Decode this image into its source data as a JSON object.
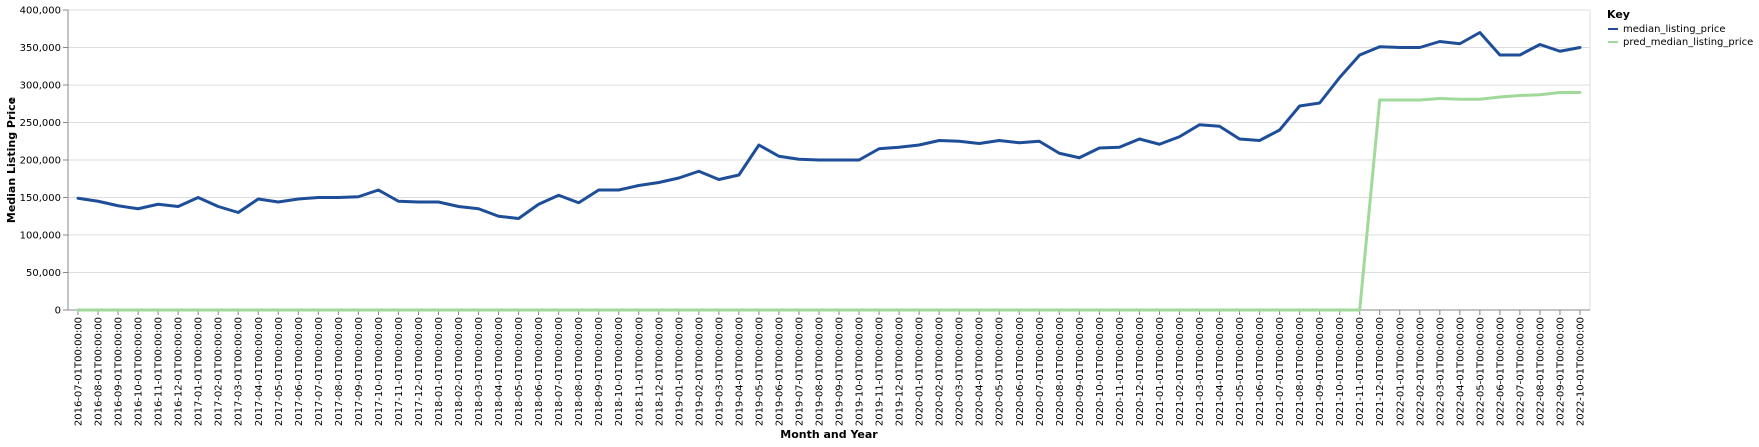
{
  "chart_data": {
    "type": "line",
    "xlabel": "Month and Year",
    "ylabel": "Median Listing Price",
    "ylim": [
      0,
      400000
    ],
    "y_ticks": [
      0,
      50000,
      100000,
      150000,
      200000,
      250000,
      300000,
      350000,
      400000
    ],
    "grid": true,
    "legend": {
      "title": "Key",
      "placement": "right"
    },
    "x": [
      "2016-07-01T00:00:00",
      "2016-08-01T00:00:00",
      "2016-09-01T00:00:00",
      "2016-10-01T00:00:00",
      "2016-11-01T00:00:00",
      "2016-12-01T00:00:00",
      "2017-01-01T00:00:00",
      "2017-02-01T00:00:00",
      "2017-03-01T00:00:00",
      "2017-04-01T00:00:00",
      "2017-05-01T00:00:00",
      "2017-06-01T00:00:00",
      "2017-07-01T00:00:00",
      "2017-08-01T00:00:00",
      "2017-09-01T00:00:00",
      "2017-10-01T00:00:00",
      "2017-11-01T00:00:00",
      "2017-12-01T00:00:00",
      "2018-01-01T00:00:00",
      "2018-02-01T00:00:00",
      "2018-03-01T00:00:00",
      "2018-04-01T00:00:00",
      "2018-05-01T00:00:00",
      "2018-06-01T00:00:00",
      "2018-07-01T00:00:00",
      "2018-08-01T00:00:00",
      "2018-09-01T00:00:00",
      "2018-10-01T00:00:00",
      "2018-11-01T00:00:00",
      "2018-12-01T00:00:00",
      "2019-01-01T00:00:00",
      "2019-02-01T00:00:00",
      "2019-03-01T00:00:00",
      "2019-04-01T00:00:00",
      "2019-05-01T00:00:00",
      "2019-06-01T00:00:00",
      "2019-07-01T00:00:00",
      "2019-08-01T00:00:00",
      "2019-09-01T00:00:00",
      "2019-10-01T00:00:00",
      "2019-11-01T00:00:00",
      "2019-12-01T00:00:00",
      "2020-01-01T00:00:00",
      "2020-02-01T00:00:00",
      "2020-03-01T00:00:00",
      "2020-04-01T00:00:00",
      "2020-05-01T00:00:00",
      "2020-06-01T00:00:00",
      "2020-07-01T00:00:00",
      "2020-08-01T00:00:00",
      "2020-09-01T00:00:00",
      "2020-10-01T00:00:00",
      "2020-11-01T00:00:00",
      "2020-12-01T00:00:00",
      "2021-01-01T00:00:00",
      "2021-02-01T00:00:00",
      "2021-03-01T00:00:00",
      "2021-04-01T00:00:00",
      "2021-05-01T00:00:00",
      "2021-06-01T00:00:00",
      "2021-07-01T00:00:00",
      "2021-08-01T00:00:00",
      "2021-09-01T00:00:00",
      "2021-10-01T00:00:00",
      "2021-11-01T00:00:00",
      "2021-12-01T00:00:00",
      "2022-01-01T00:00:00",
      "2022-02-01T00:00:00",
      "2022-03-01T00:00:00",
      "2022-04-01T00:00:00",
      "2022-05-01T00:00:00",
      "2022-06-01T00:00:00",
      "2022-07-01T00:00:00",
      "2022-08-01T00:00:00",
      "2022-09-01T00:00:00",
      "2022-10-01T00:00:00"
    ],
    "series": [
      {
        "name": "median_listing_price",
        "color": "#1f4e99",
        "values": [
          149000,
          145000,
          139000,
          135000,
          141000,
          138000,
          150000,
          138000,
          130000,
          148000,
          144000,
          148000,
          150000,
          150000,
          151000,
          160000,
          145000,
          144000,
          144000,
          138000,
          135000,
          125000,
          122000,
          141000,
          153000,
          143000,
          160000,
          160000,
          166000,
          170000,
          176000,
          185000,
          174000,
          180000,
          220000,
          205000,
          201000,
          200000,
          200000,
          200000,
          215000,
          217000,
          220000,
          226000,
          225000,
          222000,
          226000,
          223000,
          225000,
          209000,
          203000,
          216000,
          217000,
          228000,
          221000,
          231000,
          247000,
          245000,
          228000,
          226000,
          240000,
          272000,
          276000,
          310000,
          340000,
          351000,
          350000,
          350000,
          358000,
          355000,
          370000,
          340000,
          340000,
          354000,
          345000,
          350000
        ]
      },
      {
        "name": "pred_median_listing_price",
        "color": "#a1d99b",
        "values": [
          0,
          0,
          0,
          0,
          0,
          0,
          0,
          0,
          0,
          0,
          0,
          0,
          0,
          0,
          0,
          0,
          0,
          0,
          0,
          0,
          0,
          0,
          0,
          0,
          0,
          0,
          0,
          0,
          0,
          0,
          0,
          0,
          0,
          0,
          0,
          0,
          0,
          0,
          0,
          0,
          0,
          0,
          0,
          0,
          0,
          0,
          0,
          0,
          0,
          0,
          0,
          0,
          0,
          0,
          0,
          0,
          0,
          0,
          0,
          0,
          0,
          0,
          0,
          0,
          0,
          280000,
          280000,
          280000,
          282000,
          281000,
          281000,
          284000,
          286000,
          287000,
          290000,
          290000
        ]
      }
    ]
  }
}
